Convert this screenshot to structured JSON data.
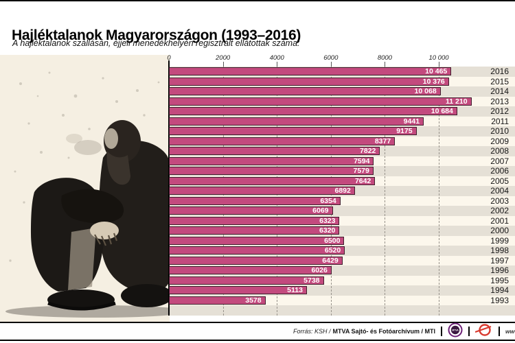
{
  "header": {
    "title": "Hajléktalanok Magyarországon (1993–2016)",
    "subtitle": "A hajléktalanok szállásán, éjjeli menedékhelyén regisztrált ellátottak száma:"
  },
  "chart_data": {
    "type": "bar",
    "orientation": "horizontal",
    "title": "Hajléktalanok Magyarországon (1993–2016)",
    "xlabel": "",
    "ylabel": "",
    "grid_on": true,
    "legend": "none",
    "axis_ticks": [
      0,
      2000,
      4000,
      6000,
      8000,
      10000
    ],
    "axis_tick_labels": [
      "0",
      "2000",
      "4000",
      "6000",
      "8000",
      "10 000"
    ],
    "xlim": [
      0,
      12800
    ],
    "categories": [
      "2016",
      "2015",
      "2014",
      "2013",
      "2012",
      "2011",
      "2010",
      "2009",
      "2008",
      "2007",
      "2006",
      "2005",
      "2004",
      "2003",
      "2002",
      "2001",
      "2000",
      "1999",
      "1998",
      "1997",
      "1996",
      "1995",
      "1994",
      "1993"
    ],
    "values": [
      10465,
      10376,
      10068,
      11210,
      10684,
      9441,
      9175,
      8377,
      7822,
      7594,
      7579,
      7642,
      6892,
      6354,
      6069,
      6323,
      6320,
      6500,
      6520,
      6429,
      6026,
      5738,
      5113,
      3578
    ],
    "value_labels": [
      "10 465",
      "10 376",
      "10 068",
      "11 210",
      "10 684",
      "9441",
      "9175",
      "8377",
      "7822",
      "7594",
      "7579",
      "7642",
      "6892",
      "6354",
      "6069",
      "6323",
      "6320",
      "6500",
      "6520",
      "6429",
      "6026",
      "5738",
      "5113",
      "3578"
    ],
    "bar_color": "#c34a7e",
    "bar_border_color": "#3e1d2c",
    "stripe_color_even": "#e5e0d6",
    "stripe_color_odd": "#fcf7ec"
  },
  "photo": {
    "name": "homeless-man-photo"
  },
  "footer": {
    "source_prefix": "Forrás: KSH /",
    "source_main": "MTVA Sajtó- és Fotóarchívum / MTI",
    "divider": "|",
    "mtva_logo_text": "MTVA",
    "url_text": "www.m"
  }
}
